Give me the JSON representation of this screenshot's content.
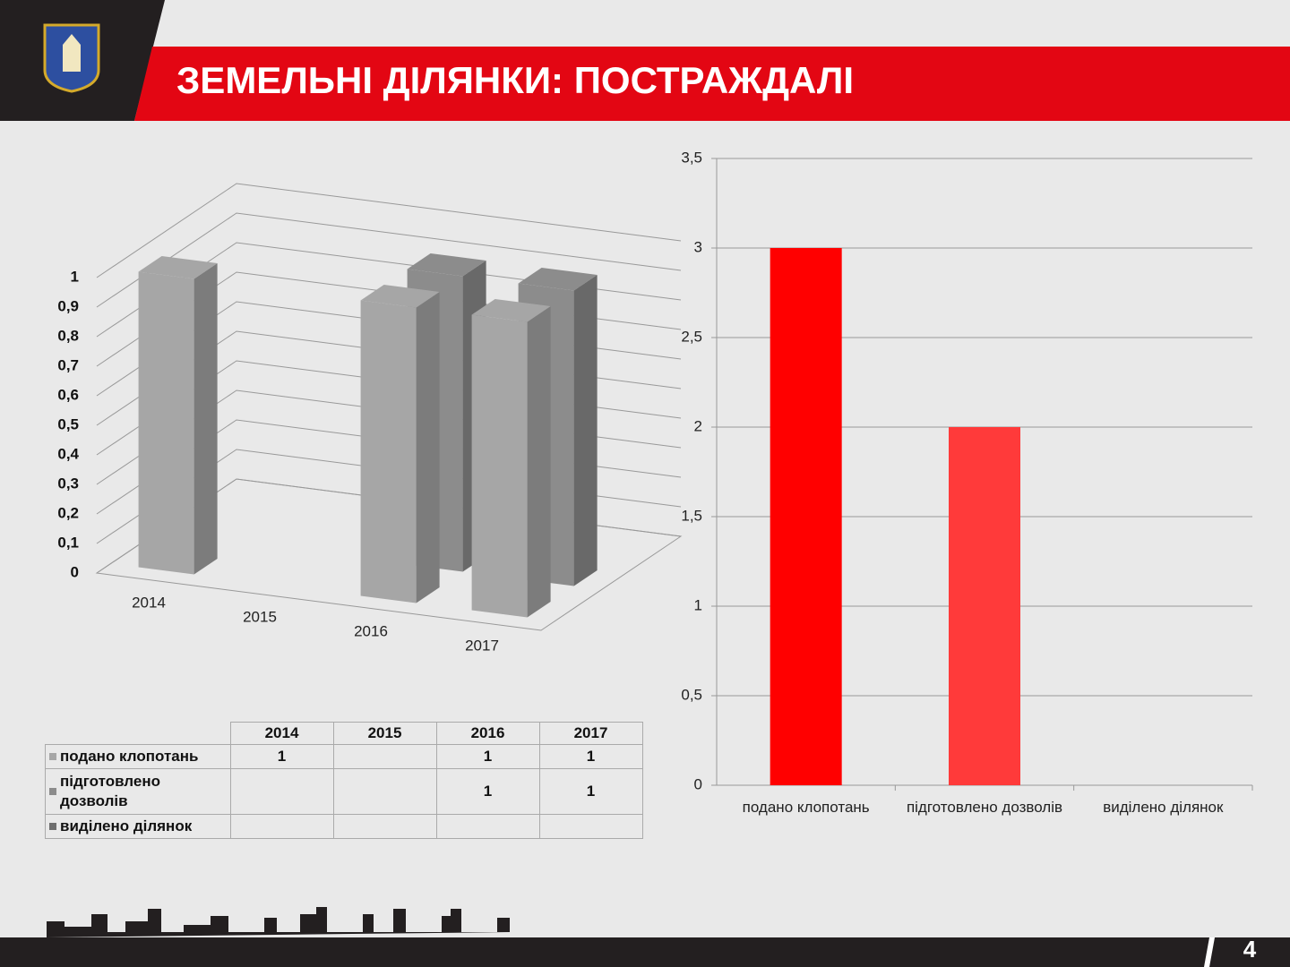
{
  "slide": {
    "title": "ЗЕМЕЛЬНІ ДІЛЯНКИ: ПОСТРАЖДАЛІ",
    "page_number": "4"
  },
  "chart_data": [
    {
      "type": "bar3d",
      "categories": [
        "2014",
        "2015",
        "2016",
        "2017"
      ],
      "series": [
        {
          "name": "подано клопотань",
          "color": "#a6a6a6",
          "values": [
            1,
            null,
            1,
            1
          ]
        },
        {
          "name": "підготовлено дозволів",
          "color": "#8c8c8c",
          "values": [
            null,
            null,
            1,
            1
          ]
        },
        {
          "name": "виділено ділянок",
          "color": "#6e6e6e",
          "values": [
            null,
            null,
            null,
            null
          ]
        }
      ],
      "ylim": [
        0,
        1
      ],
      "yticks": [
        0,
        {
          "value": 0.1,
          "label": "0,1"
        },
        {
          "value": 0.2,
          "label": "0,2"
        },
        {
          "value": 0.3,
          "label": "0,3"
        },
        {
          "value": 0.4,
          "label": "0,4"
        },
        {
          "value": 0.5,
          "label": "0,5"
        },
        {
          "value": 0.6,
          "label": "0,6"
        },
        {
          "value": 0.7,
          "label": "0,7"
        },
        {
          "value": 0.8,
          "label": "0,8"
        },
        {
          "value": 0.9,
          "label": "0,9"
        },
        1
      ],
      "grid": true,
      "data_table": true
    },
    {
      "type": "bar",
      "categories": [
        "подано клопотань",
        "підготовлено дозволів",
        "виділено ділянок"
      ],
      "values": [
        3,
        2,
        0
      ],
      "colors": [
        "#ff0000",
        "#ff3a3a",
        "#ff0000"
      ],
      "ylim": [
        0,
        3.5
      ],
      "yticks": [
        0,
        {
          "value": 0.5,
          "label": "0,5"
        },
        1,
        {
          "value": 1.5,
          "label": "1,5"
        },
        2,
        {
          "value": 2.5,
          "label": "2,5"
        },
        3,
        {
          "value": 3.5,
          "label": "3,5"
        }
      ],
      "grid": true
    }
  ]
}
